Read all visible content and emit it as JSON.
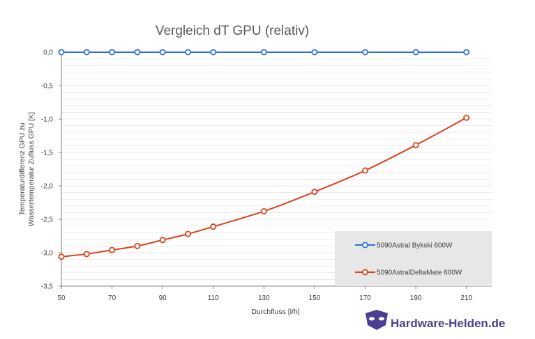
{
  "chart_data": {
    "type": "line",
    "title": "Vergleich dT GPU (relativ)",
    "xlabel": "Durchfluss [l/h]",
    "ylabel": [
      "Temperaturdifferenz GPU zu",
      "Wassertemperatur Zufluss GPU [K]"
    ],
    "x_ticks": [
      "50",
      "70",
      "90",
      "110",
      "130",
      "150",
      "170",
      "190",
      "210"
    ],
    "y_ticks": [
      "0,0",
      "-0,5",
      "-1,0",
      "-1,5",
      "-2,0",
      "-2,5",
      "-3,0",
      "-3,5"
    ],
    "xlim": [
      50,
      220
    ],
    "ylim": [
      -3.5,
      0
    ],
    "grid": "horizontal minor gridlines",
    "legend_position": "bottom-right",
    "series": [
      {
        "name": "5090Astral Bykski 600W",
        "color": "#2f6fe0",
        "x": [
          50,
          60,
          70,
          80,
          90,
          100,
          110,
          130,
          150,
          170,
          190,
          210
        ],
        "y": [
          0,
          0,
          0,
          0,
          0,
          0,
          0,
          0,
          0,
          0,
          0,
          0
        ]
      },
      {
        "name": "5090AstralDeltaMate 600W",
        "color": "#e0401e",
        "x": [
          50,
          60,
          70,
          80,
          90,
          100,
          110,
          130,
          150,
          170,
          190,
          210
        ],
        "y": [
          -3.06,
          -3.02,
          -2.96,
          -2.9,
          -2.81,
          -2.72,
          -2.61,
          -2.38,
          -2.09,
          -1.77,
          -1.39,
          -0.98
        ]
      }
    ]
  },
  "watermark": {
    "text": "Hardware-Helden.de",
    "logo": "mask-logo-icon"
  }
}
